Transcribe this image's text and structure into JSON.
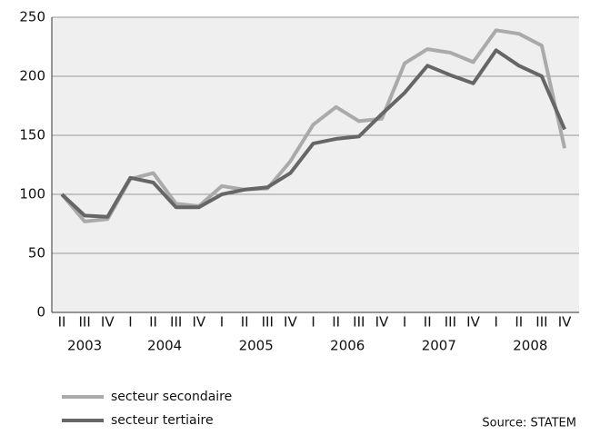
{
  "chart_data": {
    "type": "line",
    "groups": [
      {
        "label": "2003",
        "categories": [
          "II",
          "III",
          "IV"
        ]
      },
      {
        "label": "2004",
        "categories": [
          "I",
          "II",
          "III",
          "IV"
        ]
      },
      {
        "label": "2005",
        "categories": [
          "I",
          "II",
          "III",
          "IV"
        ]
      },
      {
        "label": "2006",
        "categories": [
          "I",
          "II",
          "III",
          "IV"
        ]
      },
      {
        "label": "2007",
        "categories": [
          "I",
          "II",
          "III",
          "IV"
        ]
      },
      {
        "label": "2008",
        "categories": [
          "I",
          "II",
          "III",
          "IV"
        ]
      }
    ],
    "series": [
      {
        "name": "secteur secondaire",
        "color": "#aaaaaa",
        "values": [
          100,
          77,
          79,
          113,
          118,
          92,
          90,
          107,
          104,
          105,
          128,
          159,
          174,
          162,
          164,
          211,
          223,
          220,
          212,
          239,
          236,
          226,
          139
        ]
      },
      {
        "name": "secteur tertiaire",
        "color": "#666666",
        "values": [
          100,
          82,
          81,
          114,
          110,
          89,
          89,
          100,
          104,
          106,
          118,
          143,
          147,
          149,
          168,
          186,
          209,
          201,
          194,
          222,
          209,
          200,
          155
        ]
      }
    ],
    "ylim": [
      0,
      250
    ],
    "yticks": [
      0,
      50,
      100,
      150,
      200,
      250
    ],
    "grid": true,
    "legend": "bottom-left",
    "source": "Source: STATEM"
  }
}
